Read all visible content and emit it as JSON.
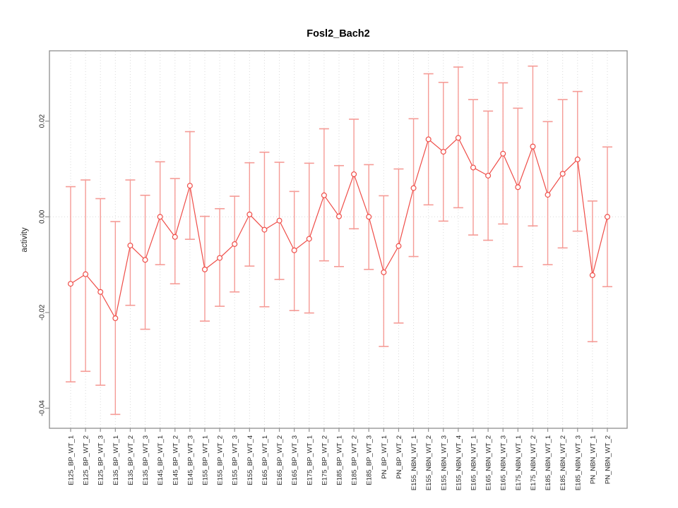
{
  "window": {
    "background": "#ffffff"
  },
  "chart_data": {
    "type": "scatter",
    "title": "Fosl2_Bach2",
    "xlabel": "",
    "ylabel": "activity",
    "legend": "none",
    "grid": "dotted vertical gridline at every category; dotted horizontal line at y=0",
    "point_style": "open-circle with error bars",
    "ylim": [
      -0.0442,
      0.0347
    ],
    "yticks": [
      0.02,
      0.0,
      -0.02,
      -0.04
    ],
    "ytick_labels": [
      "0.02",
      "0.00",
      "-0.02",
      "-0.04"
    ],
    "categories": [
      "E125_BP_WT_1",
      "E125_BP_WT_2",
      "E125_BP_WT_3",
      "E135_BP_WT_1",
      "E135_BP_WT_2",
      "E135_BP_WT_3",
      "E145_BP_WT_1",
      "E145_BP_WT_2",
      "E145_BP_WT_3",
      "E155_BP_WT_1",
      "E155_BP_WT_2",
      "E155_BP_WT_3",
      "E155_BP_WT_4",
      "E165_BP_WT_1",
      "E165_BP_WT_2",
      "E165_BP_WT_3",
      "E175_BP_WT_1",
      "E175_BP_WT_2",
      "E185_BP_WT_1",
      "E185_BP_WT_2",
      "E185_BP_WT_3",
      "PN_BP_WT_1",
      "PN_BP_WT_2",
      "E155_NBN_WT_1",
      "E155_NBN_WT_2",
      "E155_NBN_WT_3",
      "E155_NBN_WT_4",
      "E165_NBN_WT_1",
      "E165_NBN_WT_2",
      "E165_NBN_WT_3",
      "E175_NBN_WT_1",
      "E175_NBN_WT_2",
      "E185_NBN_WT_1",
      "E185_NBN_WT_2",
      "E185_NBN_WT_3",
      "PN_NBN_WT_1",
      "PN_NBN_WT_2"
    ],
    "series": [
      {
        "name": "activity",
        "values": [
          -0.014,
          -0.012,
          -0.0157,
          -0.0212,
          -0.006,
          -0.009,
          0.0,
          -0.0042,
          0.0065,
          -0.011,
          -0.0086,
          -0.0057,
          0.0005,
          -0.0027,
          -0.0008,
          -0.007,
          -0.0046,
          0.0045,
          0.0001,
          0.0089,
          0.0,
          -0.0116,
          -0.0061,
          0.006,
          0.0162,
          0.0136,
          0.0165,
          0.0103,
          0.0086,
          0.0132,
          0.0062,
          0.0147,
          0.0046,
          0.009,
          0.012,
          -0.0122,
          0.0
        ],
        "ci_low": [
          -0.0345,
          -0.0323,
          -0.0352,
          -0.0413,
          -0.0185,
          -0.0235,
          -0.01,
          -0.014,
          -0.0047,
          -0.0218,
          -0.0187,
          -0.0157,
          -0.0103,
          -0.0188,
          -0.0131,
          -0.0196,
          -0.0201,
          -0.0092,
          -0.0104,
          -0.0025,
          -0.011,
          -0.0271,
          -0.0222,
          -0.0083,
          0.0025,
          -0.0009,
          0.0019,
          -0.0038,
          -0.0049,
          -0.0015,
          -0.0104,
          -0.0019,
          -0.01,
          -0.0065,
          -0.003,
          -0.0261,
          -0.0146
        ],
        "ci_high": [
          0.0063,
          0.0077,
          0.0038,
          -0.001,
          0.0077,
          0.0045,
          0.0115,
          0.008,
          0.0178,
          0.0001,
          0.0017,
          0.0043,
          0.0113,
          0.0135,
          0.0114,
          0.0053,
          0.0112,
          0.0184,
          0.0107,
          0.0204,
          0.0109,
          0.0044,
          0.01,
          0.0205,
          0.0299,
          0.0281,
          0.0313,
          0.0245,
          0.0221,
          0.028,
          0.0227,
          0.0315,
          0.0199,
          0.0245,
          0.0262,
          0.0033,
          0.0146
        ]
      }
    ]
  },
  "colors": {
    "series": "#ef4d48",
    "ci": "#f59b96",
    "grid": "#d9d9d9",
    "box": "#8f8f8f",
    "text": "#262626",
    "title": "#000000"
  }
}
